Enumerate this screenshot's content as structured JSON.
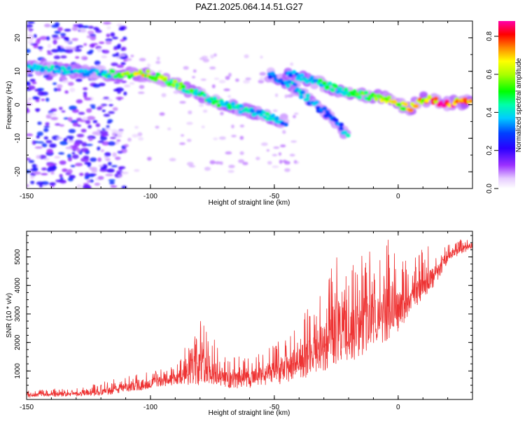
{
  "title": "PAZ1.2025.064.14.51.G27",
  "chart_data": [
    {
      "type": "heatmap",
      "xlabel": "Height of straight line (km)",
      "ylabel": "Frequency (Hz)",
      "xlim": [
        -150,
        30
      ],
      "ylim": [
        -25,
        25
      ],
      "x_ticks": [
        -150,
        -100,
        -50,
        0
      ],
      "x_tick_labels": [
        "-150",
        "-100",
        "-50",
        "0"
      ],
      "y_ticks": [
        -20,
        -10,
        0,
        10,
        20
      ],
      "y_tick_labels": [
        "-20",
        "-10",
        "0",
        "10",
        "20"
      ],
      "colorbar": {
        "label": "Normalized spectral amplitude",
        "range": [
          0,
          0.88
        ],
        "ticks": [
          0.0,
          0.2,
          0.4,
          0.6,
          0.8
        ],
        "tick_labels": [
          "0.0",
          "0.2",
          "0.4",
          "0.6",
          "0.8"
        ]
      },
      "traces": [
        {
          "x": [
            -149,
            -140,
            -130,
            -120,
            -110,
            -100,
            -90,
            -80,
            -70,
            -60,
            -50,
            -45
          ],
          "y": [
            11,
            10.5,
            10,
            9.5,
            9,
            9,
            6,
            3,
            0,
            -2,
            -4,
            -5
          ],
          "amplitude": [
            0.35,
            0.4,
            0.35,
            0.4,
            0.55,
            0.65,
            0.55,
            0.45,
            0.45,
            0.4,
            0.4,
            0.3
          ]
        },
        {
          "x": [
            -52,
            -45,
            -40,
            -35,
            -30,
            -25,
            -22,
            -20
          ],
          "y": [
            9,
            7,
            4,
            1,
            -2,
            -5,
            -8,
            -10
          ],
          "amplitude": [
            0.3,
            0.35,
            0.4,
            0.35,
            0.3,
            0.3,
            0.35,
            0.4
          ]
        },
        {
          "x": [
            -45,
            -38,
            -30,
            -22,
            -15,
            -10,
            -5,
            0,
            5,
            10,
            15,
            20,
            25,
            30
          ],
          "y": [
            10,
            8,
            6,
            4,
            3,
            2.5,
            2,
            0,
            -1,
            2,
            1,
            0.5,
            0.8,
            0.8
          ],
          "amplitude": [
            0.35,
            0.4,
            0.45,
            0.45,
            0.5,
            0.55,
            0.6,
            0.65,
            0.7,
            0.7,
            0.8,
            0.85,
            0.75,
            0.7
          ]
        }
      ],
      "scatter_region": {
        "x_range": [
          -150,
          -110
        ],
        "y_range": [
          -25,
          25
        ],
        "amplitude_max": 0.25
      }
    },
    {
      "type": "line",
      "xlabel": "Height of straight line (km)",
      "ylabel": "SNR (10 * v/v)",
      "xlim": [
        -150,
        30
      ],
      "ylim": [
        0,
        5900
      ],
      "x_ticks": [
        -150,
        -100,
        -50,
        0
      ],
      "x_tick_labels": [
        "-150",
        "-100",
        "-50",
        "0"
      ],
      "y_ticks": [
        1000,
        2000,
        3000,
        4000,
        5000
      ],
      "y_tick_labels": [
        "1000",
        "2000",
        "3000",
        "4000",
        "5000"
      ],
      "series_color": "#ee3333",
      "envelope": {
        "x": [
          -150,
          -140,
          -130,
          -120,
          -110,
          -100,
          -90,
          -80,
          -78,
          -70,
          -60,
          -50,
          -40,
          -30,
          -25,
          -20,
          -15,
          -10,
          -5,
          -2,
          0,
          5,
          10,
          15,
          20,
          25,
          30
        ],
        "base": [
          100,
          120,
          130,
          150,
          250,
          400,
          500,
          500,
          600,
          400,
          400,
          500,
          700,
          1000,
          1200,
          1300,
          1500,
          1800,
          2000,
          2200,
          2400,
          3000,
          3500,
          4000,
          4800,
          5100,
          5300
        ],
        "peak": [
          300,
          350,
          400,
          600,
          800,
          1000,
          1200,
          2800,
          2900,
          1500,
          1500,
          2000,
          2800,
          4000,
          5500,
          4500,
          5200,
          5300,
          5500,
          5900,
          5200,
          4800,
          5600,
          5200,
          5400,
          5600,
          5700
        ]
      }
    }
  ]
}
